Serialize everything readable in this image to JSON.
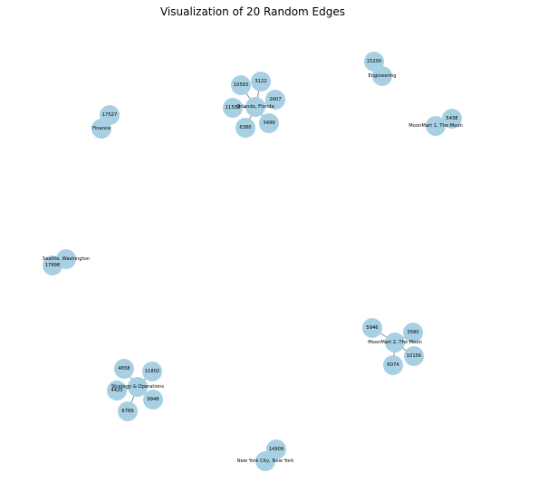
{
  "title": "Visualization of 20 Random Edges",
  "node_color": "#a8d0e3",
  "edge_color": "#8a8a8a",
  "nodes": [
    {
      "id": "orlando",
      "label": "Orlando, Florida"
    },
    {
      "id": "n10563",
      "label": "10563"
    },
    {
      "id": "n3122",
      "label": "3122"
    },
    {
      "id": "n2607",
      "label": "2607"
    },
    {
      "id": "n11503",
      "label": "11503"
    },
    {
      "id": "n3499",
      "label": "3499"
    },
    {
      "id": "n6380",
      "label": "6380"
    },
    {
      "id": "n15200",
      "label": "15200"
    },
    {
      "id": "engineering",
      "label": "Engineering"
    },
    {
      "id": "n5438",
      "label": "5438"
    },
    {
      "id": "moonmart1",
      "label": "MoonMart 1, The Moon"
    },
    {
      "id": "n17527",
      "label": "17527"
    },
    {
      "id": "finance",
      "label": "Finance"
    },
    {
      "id": "seattle",
      "label": "Seattle, Washington"
    },
    {
      "id": "n17898",
      "label": "17898"
    },
    {
      "id": "n5946",
      "label": "5946"
    },
    {
      "id": "n3580",
      "label": "3580"
    },
    {
      "id": "moonmart2",
      "label": "MoonMart 2, The Moon"
    },
    {
      "id": "n10156",
      "label": "10156"
    },
    {
      "id": "n6074",
      "label": "6074"
    },
    {
      "id": "n4658",
      "label": "4658"
    },
    {
      "id": "n11802",
      "label": "11802"
    },
    {
      "id": "strategy",
      "label": "Strategy & Operations"
    },
    {
      "id": "n4420",
      "label": "4420"
    },
    {
      "id": "n9948",
      "label": "9948"
    },
    {
      "id": "n6789",
      "label": "6789"
    },
    {
      "id": "n14909",
      "label": "14909"
    },
    {
      "id": "newyork",
      "label": "New York City, New York"
    }
  ],
  "edges": [
    [
      "orlando",
      "n10563"
    ],
    [
      "orlando",
      "n3122"
    ],
    [
      "orlando",
      "n2607"
    ],
    [
      "orlando",
      "n11503"
    ],
    [
      "orlando",
      "n3499"
    ],
    [
      "orlando",
      "n6380"
    ],
    [
      "n15200",
      "engineering"
    ],
    [
      "n5438",
      "moonmart1"
    ],
    [
      "n17527",
      "finance"
    ],
    [
      "seattle",
      "n17898"
    ],
    [
      "moonmart2",
      "n5946"
    ],
    [
      "moonmart2",
      "n3580"
    ],
    [
      "moonmart2",
      "n10156"
    ],
    [
      "moonmart2",
      "n6074"
    ],
    [
      "strategy",
      "n4658"
    ],
    [
      "strategy",
      "n11802"
    ],
    [
      "strategy",
      "n4420"
    ],
    [
      "strategy",
      "n9948"
    ],
    [
      "strategy",
      "n6789"
    ],
    [
      "n14909",
      "newyork"
    ]
  ]
}
